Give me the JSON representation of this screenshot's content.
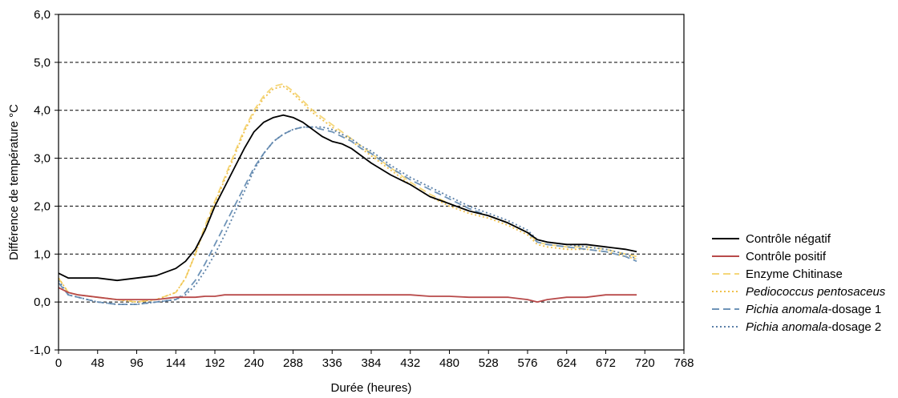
{
  "chart_data": {
    "type": "line",
    "title": "",
    "xlabel": "Durée (heures)",
    "ylabel": "Différence de température °C",
    "xlim": [
      0,
      768
    ],
    "ylim": [
      -1.0,
      6.0
    ],
    "x_ticks": [
      0,
      48,
      96,
      144,
      192,
      240,
      288,
      336,
      384,
      432,
      480,
      528,
      576,
      624,
      672,
      720,
      768
    ],
    "y_ticks": [
      -1.0,
      0.0,
      1.0,
      2.0,
      3.0,
      4.0,
      5.0,
      6.0
    ],
    "y_tick_labels": [
      "-1,0",
      "0,0",
      "1,0",
      "2,0",
      "3,0",
      "4,0",
      "5,0",
      "6,0"
    ],
    "grid": "horizontal dashed",
    "legend_position": "right",
    "x": [
      0,
      12,
      24,
      48,
      72,
      96,
      120,
      144,
      156,
      168,
      180,
      192,
      204,
      216,
      228,
      240,
      252,
      264,
      276,
      288,
      300,
      312,
      324,
      336,
      348,
      360,
      372,
      384,
      408,
      432,
      456,
      480,
      504,
      528,
      552,
      576,
      588,
      600,
      624,
      648,
      672,
      696,
      710
    ],
    "series": [
      {
        "name_parts": [
          {
            "text": "Contrôle négatif",
            "italic": false
          }
        ],
        "color": "#000000",
        "dash": "solid",
        "values": [
          0.6,
          0.5,
          0.5,
          0.5,
          0.45,
          0.5,
          0.55,
          0.7,
          0.85,
          1.1,
          1.5,
          2.0,
          2.4,
          2.8,
          3.2,
          3.55,
          3.75,
          3.85,
          3.9,
          3.85,
          3.75,
          3.6,
          3.45,
          3.35,
          3.3,
          3.2,
          3.05,
          2.9,
          2.65,
          2.45,
          2.2,
          2.05,
          1.9,
          1.8,
          1.65,
          1.45,
          1.3,
          1.25,
          1.2,
          1.2,
          1.15,
          1.1,
          1.05
        ]
      },
      {
        "name_parts": [
          {
            "text": "Contrôle positif",
            "italic": false
          }
        ],
        "color": "#b84a4a",
        "dash": "solid",
        "values": [
          0.3,
          0.2,
          0.15,
          0.1,
          0.05,
          0.05,
          0.05,
          0.1,
          0.1,
          0.1,
          0.12,
          0.12,
          0.15,
          0.15,
          0.15,
          0.15,
          0.15,
          0.15,
          0.15,
          0.15,
          0.15,
          0.15,
          0.15,
          0.15,
          0.15,
          0.15,
          0.15,
          0.15,
          0.15,
          0.15,
          0.12,
          0.12,
          0.1,
          0.1,
          0.1,
          0.05,
          0.0,
          0.05,
          0.1,
          0.1,
          0.15,
          0.15,
          0.15
        ]
      },
      {
        "name_parts": [
          {
            "text": "Enzyme Chitinase",
            "italic": false
          }
        ],
        "color": "#f5d77a",
        "dash": "dashed",
        "values": [
          0.5,
          0.2,
          0.15,
          0.1,
          0.05,
          0.0,
          0.05,
          0.2,
          0.5,
          1.0,
          1.6,
          2.1,
          2.6,
          3.1,
          3.6,
          4.0,
          4.3,
          4.5,
          4.55,
          4.4,
          4.2,
          4.0,
          3.85,
          3.7,
          3.55,
          3.4,
          3.25,
          3.1,
          2.8,
          2.5,
          2.25,
          2.05,
          1.9,
          1.8,
          1.65,
          1.45,
          1.25,
          1.2,
          1.15,
          1.15,
          1.1,
          1.0,
          0.95
        ]
      },
      {
        "name_parts": [
          {
            "text": "Pediococcus pentosaceus",
            "italic": true
          }
        ],
        "color": "#f0c04a",
        "dash": "dotted",
        "values": [
          0.5,
          0.2,
          0.15,
          0.1,
          0.05,
          0.0,
          0.05,
          0.2,
          0.5,
          1.0,
          1.55,
          2.05,
          2.55,
          3.05,
          3.55,
          3.95,
          4.25,
          4.45,
          4.5,
          4.35,
          4.15,
          3.95,
          3.8,
          3.65,
          3.5,
          3.35,
          3.2,
          3.05,
          2.75,
          2.45,
          2.2,
          2.0,
          1.85,
          1.75,
          1.6,
          1.4,
          1.2,
          1.15,
          1.1,
          1.1,
          1.05,
          0.95,
          0.9
        ]
      },
      {
        "name_parts": [
          {
            "text": "Pichia anomala",
            "italic": true
          },
          {
            "text": "-dosage 1",
            "italic": false
          }
        ],
        "color": "#6f94b8",
        "dash": "dashed",
        "values": [
          0.4,
          0.15,
          0.1,
          0.0,
          -0.05,
          -0.05,
          0.0,
          0.05,
          0.2,
          0.45,
          0.8,
          1.2,
          1.6,
          2.0,
          2.4,
          2.8,
          3.1,
          3.35,
          3.5,
          3.6,
          3.65,
          3.65,
          3.6,
          3.55,
          3.45,
          3.35,
          3.2,
          3.1,
          2.8,
          2.55,
          2.35,
          2.15,
          1.95,
          1.8,
          1.65,
          1.45,
          1.25,
          1.2,
          1.15,
          1.1,
          1.05,
          0.95,
          0.85
        ]
      },
      {
        "name_parts": [
          {
            "text": "Pichia anomala",
            "italic": true
          },
          {
            "text": "-dosage 2",
            "italic": false
          }
        ],
        "color": "#5b80a8",
        "dash": "dotted",
        "values": [
          0.45,
          0.15,
          0.1,
          0.0,
          -0.05,
          -0.05,
          0.0,
          0.05,
          0.15,
          0.35,
          0.65,
          1.0,
          1.4,
          1.85,
          2.3,
          2.75,
          3.1,
          3.35,
          3.5,
          3.6,
          3.65,
          3.65,
          3.65,
          3.6,
          3.5,
          3.4,
          3.25,
          3.15,
          2.85,
          2.6,
          2.4,
          2.2,
          2.0,
          1.85,
          1.7,
          1.5,
          1.3,
          1.25,
          1.2,
          1.15,
          1.1,
          1.0,
          0.9
        ]
      }
    ]
  }
}
